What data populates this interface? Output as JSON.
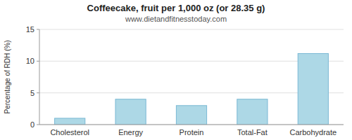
{
  "chart_data": {
    "type": "bar",
    "title": "Coffeecake, fruit per 1,000 oz (or 28.35 g)",
    "subtitle": "www.dietandfitnesstoday.com",
    "categories": [
      "Cholesterol",
      "Energy",
      "Protein",
      "Total-Fat",
      "Carbohydrate"
    ],
    "values": [
      1.0,
      4.0,
      3.0,
      4.0,
      11.2
    ],
    "color": "#add8e6",
    "ylabel": "Percentage of RDH (%)",
    "ylim": [
      0,
      15
    ],
    "yticks": [
      0,
      5,
      10,
      15
    ],
    "grid": true
  }
}
